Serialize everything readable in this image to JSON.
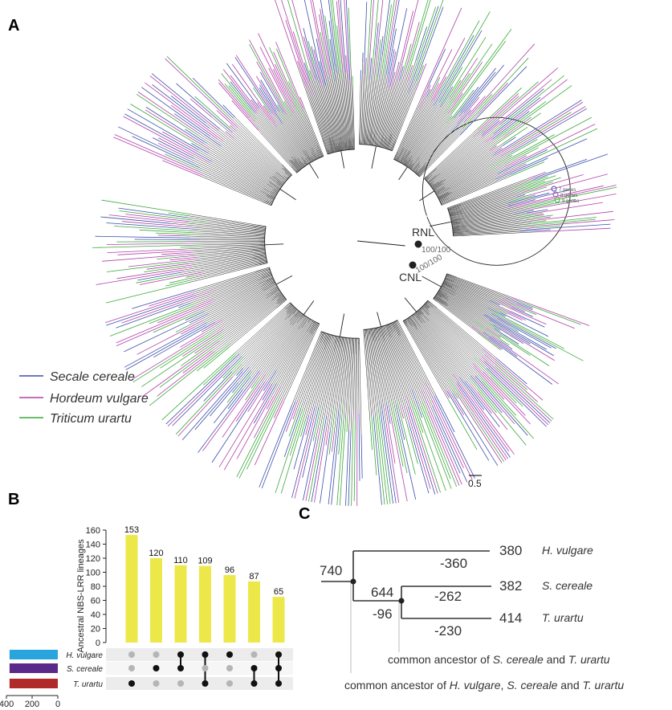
{
  "panel_a": {
    "label": "A",
    "clade_labels": [
      {
        "name": "RNL",
        "support": "100/100"
      },
      {
        "name": "CNL",
        "support": "100/100"
      }
    ],
    "size_legend": [
      "7 genes",
      "8 genes",
      "9 genes"
    ],
    "legend": [
      {
        "species": "Secale cereale",
        "color": "#3b4fa8"
      },
      {
        "species": "Hordeum vulgare",
        "color": "#b040a8"
      },
      {
        "species": "Triticum urartu",
        "color": "#3aa83a"
      }
    ],
    "scale_bar": "0.5"
  },
  "panel_b": {
    "label": "B",
    "chart_data": {
      "type": "bar",
      "ylabel": "Ancestral NBS-LRR lineages",
      "ylim": [
        0,
        160
      ],
      "yticks": [
        0,
        20,
        40,
        60,
        80,
        100,
        120,
        140,
        160
      ],
      "values": [
        153,
        120,
        110,
        109,
        96,
        87,
        65
      ],
      "bar_color": "#ede84a",
      "sets": [
        {
          "name": "H. vulgare",
          "color": "#2aa4dc"
        },
        {
          "name": "S. cereale",
          "color": "#5a2a8a"
        },
        {
          "name": "T. urartu",
          "color": "#b02a2a"
        }
      ],
      "membership": [
        [
          false,
          false,
          true
        ],
        [
          false,
          true,
          false
        ],
        [
          true,
          true,
          false
        ],
        [
          true,
          false,
          true
        ],
        [
          true,
          false,
          false
        ],
        [
          false,
          true,
          true
        ],
        [
          true,
          true,
          true
        ]
      ],
      "set_size_ticks": [
        "400",
        "200",
        "0"
      ]
    }
  },
  "panel_c": {
    "label": "C",
    "root": "740",
    "inner_node": "644",
    "inner_branch_change": "-96",
    "tips": [
      {
        "count": "380",
        "species": "H. vulgare",
        "change": "-360"
      },
      {
        "count": "382",
        "species": "S. cereale",
        "change": "-262"
      },
      {
        "count": "414",
        "species": "T. urartu",
        "change": "-230"
      }
    ],
    "note_inner": {
      "text": "common ancestor of ",
      "sp1": "S. cereale",
      "and": " and ",
      "sp2": "T. urartu"
    },
    "note_root": {
      "text": "common ancestor of ",
      "sp1": "H. vulgare",
      "sep": ", ",
      "sp2": "S. cereale",
      "and": " and ",
      "sp3": "T. urartu"
    }
  }
}
